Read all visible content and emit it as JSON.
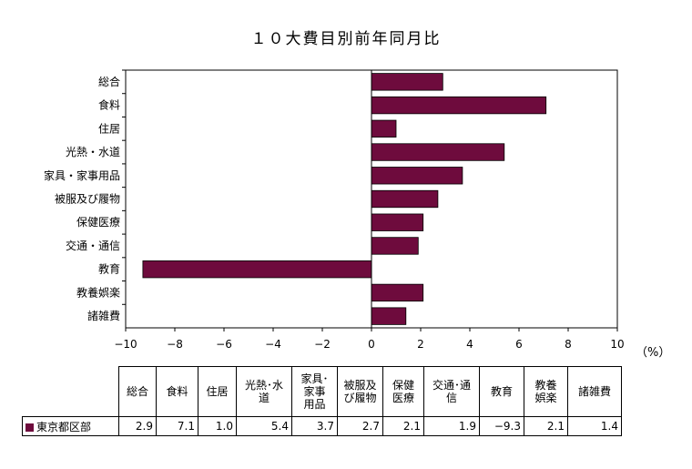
{
  "title": "１０大費目別前年同月比",
  "unit_label": "（%）",
  "colors": {
    "bar": "#6e0b3d",
    "axis": "#000000"
  },
  "chart_data": {
    "type": "bar",
    "orientation": "horizontal",
    "categories": [
      "総合",
      "食料",
      "住居",
      "光熱・水道",
      "家具・家事用品",
      "被服及び履物",
      "保健医療",
      "交通・通信",
      "教育",
      "教養娯楽",
      "諸雑費"
    ],
    "series": [
      {
        "name": "東京都区部",
        "values": [
          2.9,
          7.1,
          1.0,
          5.4,
          3.7,
          2.7,
          2.1,
          1.9,
          -9.3,
          2.1,
          1.4
        ]
      }
    ],
    "xlim": [
      -10,
      10
    ],
    "xticks": [
      -10,
      -8,
      -6,
      -4,
      -2,
      0,
      2,
      4,
      6,
      8,
      10
    ],
    "grid": false,
    "legend": "none"
  },
  "table": {
    "headers": [
      "総合",
      "食料",
      "住居",
      "光熱･水道",
      "家具･家事用品",
      "被服及び履物",
      "保健医療",
      "交通･通信",
      "教育",
      "教養娯楽",
      "諸雑費"
    ],
    "header_lines": [
      [
        "総合"
      ],
      [
        "食料"
      ],
      [
        "住居"
      ],
      [
        "光熱･水",
        "道"
      ],
      [
        "家具･",
        "家事",
        "用品"
      ],
      [
        "被服及",
        "び履物"
      ],
      [
        "保健",
        "医療"
      ],
      [
        "交通･通",
        "信"
      ],
      [
        "教育"
      ],
      [
        "教養",
        "娯楽"
      ],
      [
        "諸雑費"
      ]
    ],
    "row_label": "東京都区部",
    "values": [
      "2.9",
      "7.1",
      "1.0",
      "5.4",
      "3.7",
      "2.7",
      "2.1",
      "1.9",
      "−9.3",
      "2.1",
      "1.4"
    ]
  }
}
